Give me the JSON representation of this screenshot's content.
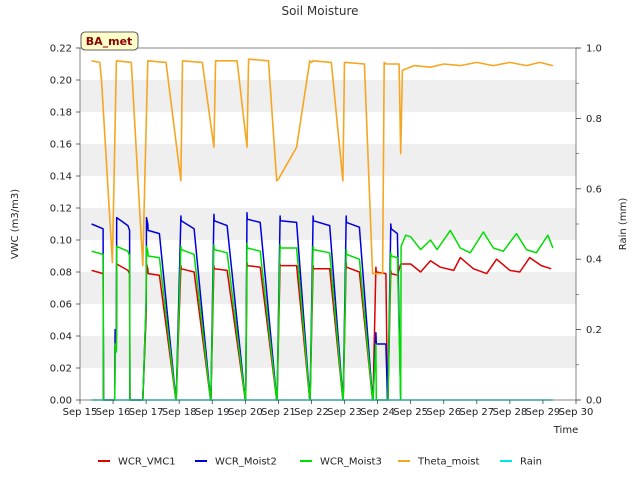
{
  "chart_data": {
    "type": "line",
    "title": "Soil Moisture",
    "badge": "BA_met",
    "xlabel": "Time",
    "ylabel": "VWC (m3/m3)",
    "y2label": "Rain (mm)",
    "xlim": [
      15,
      30
    ],
    "ylim": [
      0.0,
      0.22
    ],
    "y2lim": [
      0.0,
      1.0
    ],
    "x_ticks": [
      {
        "value": 15,
        "label": "Sep 15"
      },
      {
        "value": 16,
        "label": "Sep 16"
      },
      {
        "value": 17,
        "label": "Sep 17"
      },
      {
        "value": 18,
        "label": "Sep 18"
      },
      {
        "value": 19,
        "label": "Sep 19"
      },
      {
        "value": 20,
        "label": "Sep 20"
      },
      {
        "value": 21,
        "label": "Sep 21"
      },
      {
        "value": 22,
        "label": "Sep 22"
      },
      {
        "value": 23,
        "label": "Sep 23"
      },
      {
        "value": 24,
        "label": "Sep 24"
      },
      {
        "value": 25,
        "label": "Sep 25"
      },
      {
        "value": 26,
        "label": "Sep 26"
      },
      {
        "value": 27,
        "label": "Sep 27"
      },
      {
        "value": 28,
        "label": "Sep 28"
      },
      {
        "value": 29,
        "label": "Sep 29"
      },
      {
        "value": 30,
        "label": "Sep 30"
      }
    ],
    "y_ticks": [
      {
        "value": 0.0,
        "label": "0.00"
      },
      {
        "value": 0.02,
        "label": "0.02"
      },
      {
        "value": 0.04,
        "label": "0.04"
      },
      {
        "value": 0.06,
        "label": "0.06"
      },
      {
        "value": 0.08,
        "label": "0.08"
      },
      {
        "value": 0.1,
        "label": "0.10"
      },
      {
        "value": 0.12,
        "label": "0.12"
      },
      {
        "value": 0.14,
        "label": "0.14"
      },
      {
        "value": 0.16,
        "label": "0.16"
      },
      {
        "value": 0.18,
        "label": "0.18"
      },
      {
        "value": 0.2,
        "label": "0.20"
      },
      {
        "value": 0.22,
        "label": "0.22"
      }
    ],
    "y2_ticks": [
      {
        "value": 0.0,
        "label": "0.0"
      },
      {
        "value": 0.2,
        "label": "0.2"
      },
      {
        "value": 0.4,
        "label": "0.4"
      },
      {
        "value": 0.6,
        "label": "0.6"
      },
      {
        "value": 0.8,
        "label": "0.8"
      },
      {
        "value": 1.0,
        "label": "1.0"
      }
    ],
    "series": [
      {
        "name": "WCR_VMC1",
        "color": "#dd0000",
        "axis": "left",
        "x": [
          15.35,
          15.7,
          15.71,
          16.05,
          16.06,
          16.1,
          16.11,
          16.45,
          16.5,
          16.51,
          16.9,
          17.0,
          17.01,
          17.05,
          17.06,
          17.4,
          17.9,
          17.91,
          18.05,
          18.06,
          18.45,
          18.95,
          18.96,
          19.05,
          19.06,
          19.45,
          20.0,
          20.01,
          20.05,
          20.06,
          20.45,
          20.95,
          20.96,
          21.05,
          21.06,
          21.55,
          21.95,
          21.96,
          22.05,
          22.06,
          22.55,
          22.95,
          22.96,
          23.05,
          23.06,
          23.45,
          23.85,
          23.86,
          23.95,
          23.96,
          24.25,
          24.3,
          24.31,
          24.4,
          24.41,
          24.6,
          24.7,
          25.0,
          25.3,
          25.6,
          25.9,
          26.3,
          26.5,
          26.9,
          27.3,
          27.6,
          28.0,
          28.3,
          28.6,
          28.95,
          29.25
        ],
        "y": [
          0.081,
          0.079,
          0.0,
          0.0,
          0.034,
          0.032,
          0.085,
          0.081,
          0.079,
          0.0,
          0.0,
          0.052,
          0.085,
          0.082,
          0.079,
          0.078,
          0.0,
          0.0,
          0.084,
          0.082,
          0.08,
          0.0,
          0.0,
          0.084,
          0.082,
          0.081,
          0.0,
          0.0,
          0.086,
          0.084,
          0.083,
          0.0,
          0.0,
          0.085,
          0.084,
          0.084,
          0.0,
          0.0,
          0.084,
          0.082,
          0.082,
          0.0,
          0.0,
          0.086,
          0.083,
          0.08,
          0.0,
          0.0,
          0.083,
          0.08,
          0.079,
          0.0,
          0.0,
          0.081,
          0.079,
          0.078,
          0.085,
          0.085,
          0.08,
          0.087,
          0.083,
          0.081,
          0.089,
          0.082,
          0.079,
          0.088,
          0.081,
          0.08,
          0.089,
          0.084,
          0.082
        ]
      },
      {
        "name": "WCR_Moist2",
        "color": "#0000dd",
        "axis": "left",
        "x": [
          15.35,
          15.7,
          15.71,
          16.05,
          16.06,
          16.1,
          16.11,
          16.45,
          16.5,
          16.51,
          16.9,
          17.0,
          17.01,
          17.05,
          17.06,
          17.4,
          17.9,
          17.91,
          18.05,
          18.06,
          18.45,
          18.95,
          18.96,
          19.05,
          19.06,
          19.45,
          20.0,
          20.01,
          20.05,
          20.06,
          20.45,
          20.95,
          20.96,
          21.05,
          21.06,
          21.55,
          21.95,
          21.96,
          22.05,
          22.06,
          22.55,
          22.95,
          22.96,
          23.05,
          23.06,
          23.45,
          23.85,
          23.86,
          23.95,
          23.96,
          24.25,
          24.3,
          24.31,
          24.4,
          24.41,
          24.6,
          24.7
        ],
        "y": [
          0.11,
          0.107,
          0.0,
          0.0,
          0.044,
          0.04,
          0.114,
          0.109,
          0.106,
          0.0,
          0.0,
          0.06,
          0.114,
          0.11,
          0.106,
          0.104,
          0.0,
          0.0,
          0.115,
          0.112,
          0.107,
          0.0,
          0.0,
          0.116,
          0.112,
          0.109,
          0.0,
          0.0,
          0.117,
          0.113,
          0.111,
          0.0,
          0.0,
          0.115,
          0.112,
          0.111,
          0.0,
          0.0,
          0.115,
          0.112,
          0.109,
          0.0,
          0.0,
          0.115,
          0.111,
          0.108,
          0.0,
          0.0,
          0.042,
          0.035,
          0.035,
          0.0,
          0.0,
          0.11,
          0.107,
          0.104,
          0.0
        ]
      },
      {
        "name": "WCR_Moist3",
        "color": "#00dd00",
        "axis": "left",
        "x": [
          15.35,
          15.7,
          15.71,
          16.05,
          16.06,
          16.1,
          16.11,
          16.45,
          16.5,
          16.51,
          16.9,
          17.0,
          17.01,
          17.05,
          17.06,
          17.4,
          17.9,
          17.91,
          18.05,
          18.06,
          18.45,
          18.95,
          18.96,
          19.05,
          19.06,
          19.45,
          20.0,
          20.01,
          20.05,
          20.06,
          20.45,
          20.95,
          20.96,
          21.05,
          21.06,
          21.55,
          21.95,
          21.96,
          22.05,
          22.06,
          22.55,
          22.95,
          22.96,
          23.05,
          23.06,
          23.45,
          23.85,
          23.86,
          23.95,
          23.96,
          24.25,
          24.3,
          24.31,
          24.4,
          24.41,
          24.6,
          24.7,
          24.71,
          24.85,
          25.0,
          25.3,
          25.6,
          25.8,
          26.2,
          26.5,
          26.8,
          27.2,
          27.5,
          27.8,
          28.2,
          28.5,
          28.8,
          29.15,
          29.3
        ],
        "y": [
          0.093,
          0.091,
          0.0,
          0.0,
          0.035,
          0.03,
          0.096,
          0.093,
          0.09,
          0.0,
          0.0,
          0.06,
          0.096,
          0.093,
          0.09,
          0.089,
          0.0,
          0.0,
          0.096,
          0.094,
          0.091,
          0.0,
          0.0,
          0.097,
          0.094,
          0.092,
          0.0,
          0.0,
          0.098,
          0.095,
          0.093,
          0.0,
          0.0,
          0.097,
          0.095,
          0.095,
          0.0,
          0.0,
          0.096,
          0.094,
          0.092,
          0.0,
          0.0,
          0.094,
          0.091,
          0.088,
          0.0,
          0.0,
          0.035,
          0.0,
          0.0,
          0.0,
          0.0,
          0.092,
          0.09,
          0.089,
          0.0,
          0.096,
          0.103,
          0.102,
          0.094,
          0.1,
          0.094,
          0.106,
          0.095,
          0.092,
          0.105,
          0.095,
          0.093,
          0.104,
          0.094,
          0.092,
          0.103,
          0.095
        ]
      },
      {
        "name": "Theta_moist",
        "color": "#f5a623",
        "axis": "left",
        "x": [
          15.35,
          15.6,
          15.65,
          15.98,
          16.1,
          16.55,
          16.9,
          16.96,
          17.05,
          17.6,
          18.05,
          18.1,
          18.7,
          19.05,
          19.1,
          19.75,
          20.05,
          20.1,
          20.7,
          20.95,
          21.0,
          21.55,
          21.95,
          22.0,
          22.05,
          22.6,
          22.95,
          23.0,
          23.05,
          23.6,
          23.85,
          23.9,
          24.15,
          24.2,
          24.25,
          24.65,
          24.7,
          24.75,
          25.1,
          25.6,
          26.0,
          26.5,
          27.0,
          27.5,
          28.0,
          28.5,
          28.9,
          29.3
        ],
        "y": [
          0.212,
          0.211,
          0.2,
          0.086,
          0.212,
          0.211,
          0.084,
          0.137,
          0.212,
          0.211,
          0.137,
          0.212,
          0.211,
          0.158,
          0.212,
          0.212,
          0.158,
          0.213,
          0.212,
          0.137,
          0.138,
          0.158,
          0.212,
          0.211,
          0.212,
          0.211,
          0.137,
          0.211,
          0.211,
          0.21,
          0.079,
          0.079,
          0.079,
          0.211,
          0.21,
          0.21,
          0.154,
          0.206,
          0.209,
          0.208,
          0.21,
          0.209,
          0.211,
          0.209,
          0.211,
          0.209,
          0.211,
          0.209
        ]
      },
      {
        "name": "Rain",
        "color": "#00e5e5",
        "axis": "right",
        "x": [
          15.35,
          29.3
        ],
        "y": [
          0.0,
          0.0
        ]
      }
    ],
    "legend": [
      "WCR_VMC1",
      "WCR_Moist2",
      "WCR_Moist3",
      "Theta_moist",
      "Rain"
    ],
    "legend_position": "bottom",
    "background_bands": true
  }
}
